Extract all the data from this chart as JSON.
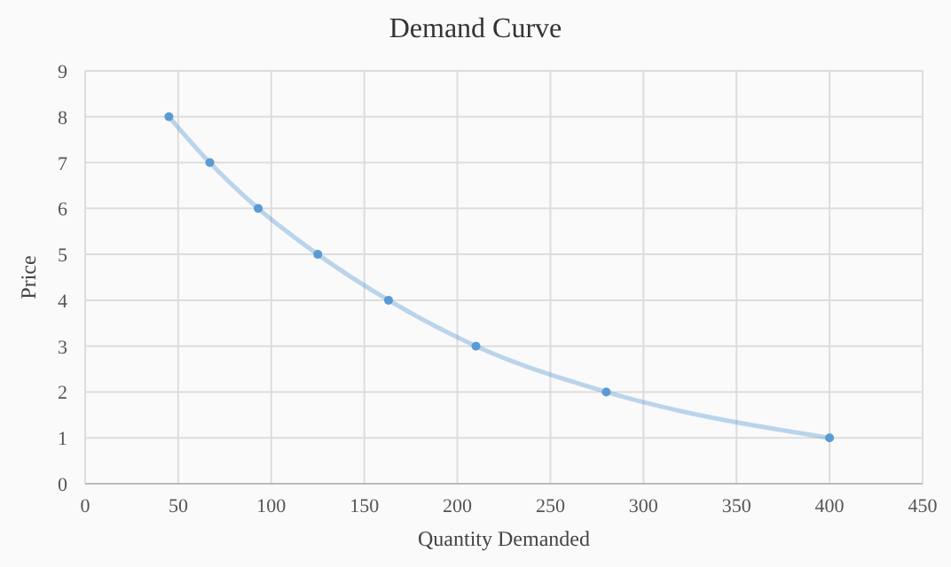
{
  "chart_data": {
    "type": "line",
    "title": "Demand Curve",
    "xlabel": "Quantity Demanded",
    "ylabel": "Price",
    "x": [
      45,
      67,
      93,
      125,
      163,
      210,
      280,
      400
    ],
    "series": [
      {
        "color": "#5b9bd5",
        "values": [
          8,
          7,
          6,
          5,
          4,
          3,
          2,
          1
        ]
      }
    ],
    "xlim": [
      0,
      450
    ],
    "xticks": [
      0,
      50,
      100,
      150,
      200,
      250,
      300,
      350,
      400,
      450
    ],
    "ylim": [
      0,
      9
    ],
    "yticks": [
      0,
      1,
      2,
      3,
      4,
      5,
      6,
      7,
      8,
      9
    ],
    "grid": true,
    "marker": "circle",
    "line_style": "solid"
  }
}
